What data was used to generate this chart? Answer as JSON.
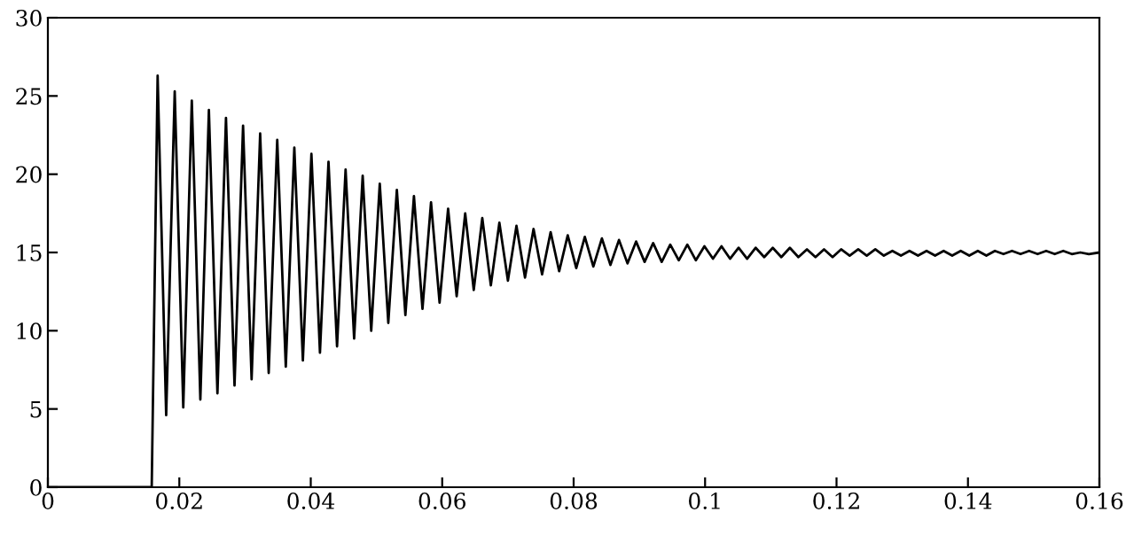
{
  "chart_data": {
    "type": "line",
    "xlim": [
      0,
      0.16
    ],
    "ylim": [
      0,
      30
    ],
    "xticks": [
      0,
      0.02,
      0.04,
      0.06,
      0.08,
      0.1,
      0.12,
      0.14,
      0.16
    ],
    "yticks": [
      0,
      5,
      10,
      15,
      20,
      25,
      30
    ],
    "grid": false,
    "series": [
      {
        "color": "#000000",
        "x": [
          0,
          0.0158,
          0.0167,
          0.018,
          0.0193,
          0.0206,
          0.0219,
          0.0232,
          0.0245,
          0.0258,
          0.0271,
          0.0284,
          0.0297,
          0.031,
          0.0323,
          0.0336,
          0.0349,
          0.0362,
          0.0375,
          0.0388,
          0.0401,
          0.0414,
          0.0427,
          0.044,
          0.0453,
          0.0466,
          0.0479,
          0.0492,
          0.0505,
          0.0518,
          0.0531,
          0.0544,
          0.0557,
          0.057,
          0.0583,
          0.0596,
          0.0609,
          0.0622,
          0.0635,
          0.0648,
          0.0661,
          0.0674,
          0.0687,
          0.07,
          0.0713,
          0.0726,
          0.0739,
          0.0752,
          0.0765,
          0.0778,
          0.0791,
          0.0804,
          0.0817,
          0.083,
          0.0843,
          0.0856,
          0.0869,
          0.0882,
          0.0895,
          0.0908,
          0.0921,
          0.0934,
          0.0947,
          0.096,
          0.0973,
          0.0986,
          0.0999,
          0.1012,
          0.1025,
          0.1038,
          0.1051,
          0.1064,
          0.1077,
          0.109,
          0.1103,
          0.1116,
          0.1129,
          0.1142,
          0.1155,
          0.1168,
          0.1181,
          0.1194,
          0.1207,
          0.122,
          0.1233,
          0.1246,
          0.1259,
          0.1272,
          0.1285,
          0.1298,
          0.1311,
          0.1324,
          0.1337,
          0.135,
          0.1363,
          0.1376,
          0.1389,
          0.1402,
          0.1415,
          0.1428,
          0.1441,
          0.1454,
          0.1467,
          0.148,
          0.1493,
          0.1506,
          0.1519,
          0.1532,
          0.1545,
          0.1558,
          0.1571,
          0.1584,
          0.16
        ],
        "values": [
          0,
          0,
          26.3,
          4.6,
          25.3,
          5.1,
          24.7,
          5.6,
          24.1,
          6.0,
          23.6,
          6.5,
          23.1,
          6.9,
          22.6,
          7.3,
          22.2,
          7.7,
          21.7,
          8.1,
          21.3,
          8.6,
          20.8,
          9.0,
          20.3,
          9.5,
          19.9,
          10.0,
          19.4,
          10.5,
          19.0,
          11.0,
          18.6,
          11.4,
          18.2,
          11.8,
          17.8,
          12.2,
          17.5,
          12.6,
          17.2,
          12.9,
          16.9,
          13.2,
          16.7,
          13.4,
          16.5,
          13.6,
          16.3,
          13.8,
          16.1,
          14.0,
          16.0,
          14.1,
          15.9,
          14.2,
          15.8,
          14.3,
          15.7,
          14.4,
          15.6,
          14.4,
          15.5,
          14.5,
          15.5,
          14.5,
          15.4,
          14.6,
          15.4,
          14.6,
          15.3,
          14.6,
          15.3,
          14.7,
          15.3,
          14.7,
          15.3,
          14.7,
          15.2,
          14.7,
          15.2,
          14.7,
          15.2,
          14.8,
          15.2,
          14.8,
          15.2,
          14.8,
          15.1,
          14.8,
          15.1,
          14.8,
          15.1,
          14.8,
          15.1,
          14.8,
          15.1,
          14.8,
          15.1,
          14.8,
          15.1,
          14.9,
          15.1,
          14.9,
          15.1,
          14.9,
          15.1,
          14.9,
          15.1,
          14.9,
          15.0,
          14.9,
          15.0
        ]
      }
    ]
  }
}
